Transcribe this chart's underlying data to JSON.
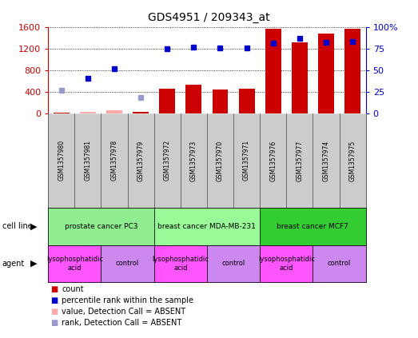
{
  "title": "GDS4951 / 209343_at",
  "samples": [
    "GSM1357980",
    "GSM1357981",
    "GSM1357978",
    "GSM1357979",
    "GSM1357972",
    "GSM1357973",
    "GSM1357970",
    "GSM1357971",
    "GSM1357976",
    "GSM1357977",
    "GSM1357974",
    "GSM1357975"
  ],
  "count_values": [
    8,
    25,
    50,
    30,
    455,
    530,
    440,
    460,
    1565,
    1310,
    1480,
    1565
  ],
  "count_absent_flags": [
    false,
    true,
    true,
    false,
    false,
    false,
    false,
    false,
    false,
    false,
    false,
    false
  ],
  "rank_values": [
    430,
    650,
    830,
    295,
    1195,
    1230,
    1205,
    1215,
    1305,
    1385,
    1310,
    1335
  ],
  "rank_absent_flags": [
    true,
    false,
    false,
    true,
    false,
    false,
    false,
    false,
    false,
    false,
    false,
    false
  ],
  "ylim_left": [
    0,
    1600
  ],
  "yticks_left": [
    0,
    400,
    800,
    1200,
    1600
  ],
  "yticks_right": [
    0,
    25,
    50,
    75,
    100
  ],
  "cell_line_groups": [
    {
      "label": "prostate cancer PC3",
      "start": 0,
      "end": 4,
      "color": "#90EE90"
    },
    {
      "label": "breast cancer MDA-MB-231",
      "start": 4,
      "end": 8,
      "color": "#98FB98"
    },
    {
      "label": "breast cancer MCF7",
      "start": 8,
      "end": 12,
      "color": "#33CC33"
    }
  ],
  "agent_groups": [
    {
      "label": "lysophosphatidic\nacid",
      "start": 0,
      "end": 2,
      "color": "#FF55FF"
    },
    {
      "label": "control",
      "start": 2,
      "end": 4,
      "color": "#CC88EE"
    },
    {
      "label": "lysophosphatidic\nacid",
      "start": 4,
      "end": 6,
      "color": "#FF55FF"
    },
    {
      "label": "control",
      "start": 6,
      "end": 8,
      "color": "#CC88EE"
    },
    {
      "label": "lysophosphatidic\nacid",
      "start": 8,
      "end": 10,
      "color": "#FF55FF"
    },
    {
      "label": "control",
      "start": 10,
      "end": 12,
      "color": "#CC88EE"
    }
  ],
  "bar_color": "#CC0000",
  "count_absent_bar_color": "#FFAAAA",
  "rank_present_color": "#0000CC",
  "rank_absent_color": "#9999CC",
  "background_color": "#FFFFFF",
  "sample_bg_color": "#CCCCCC",
  "left_axis_color": "#CC0000",
  "right_axis_color": "#0000CC"
}
